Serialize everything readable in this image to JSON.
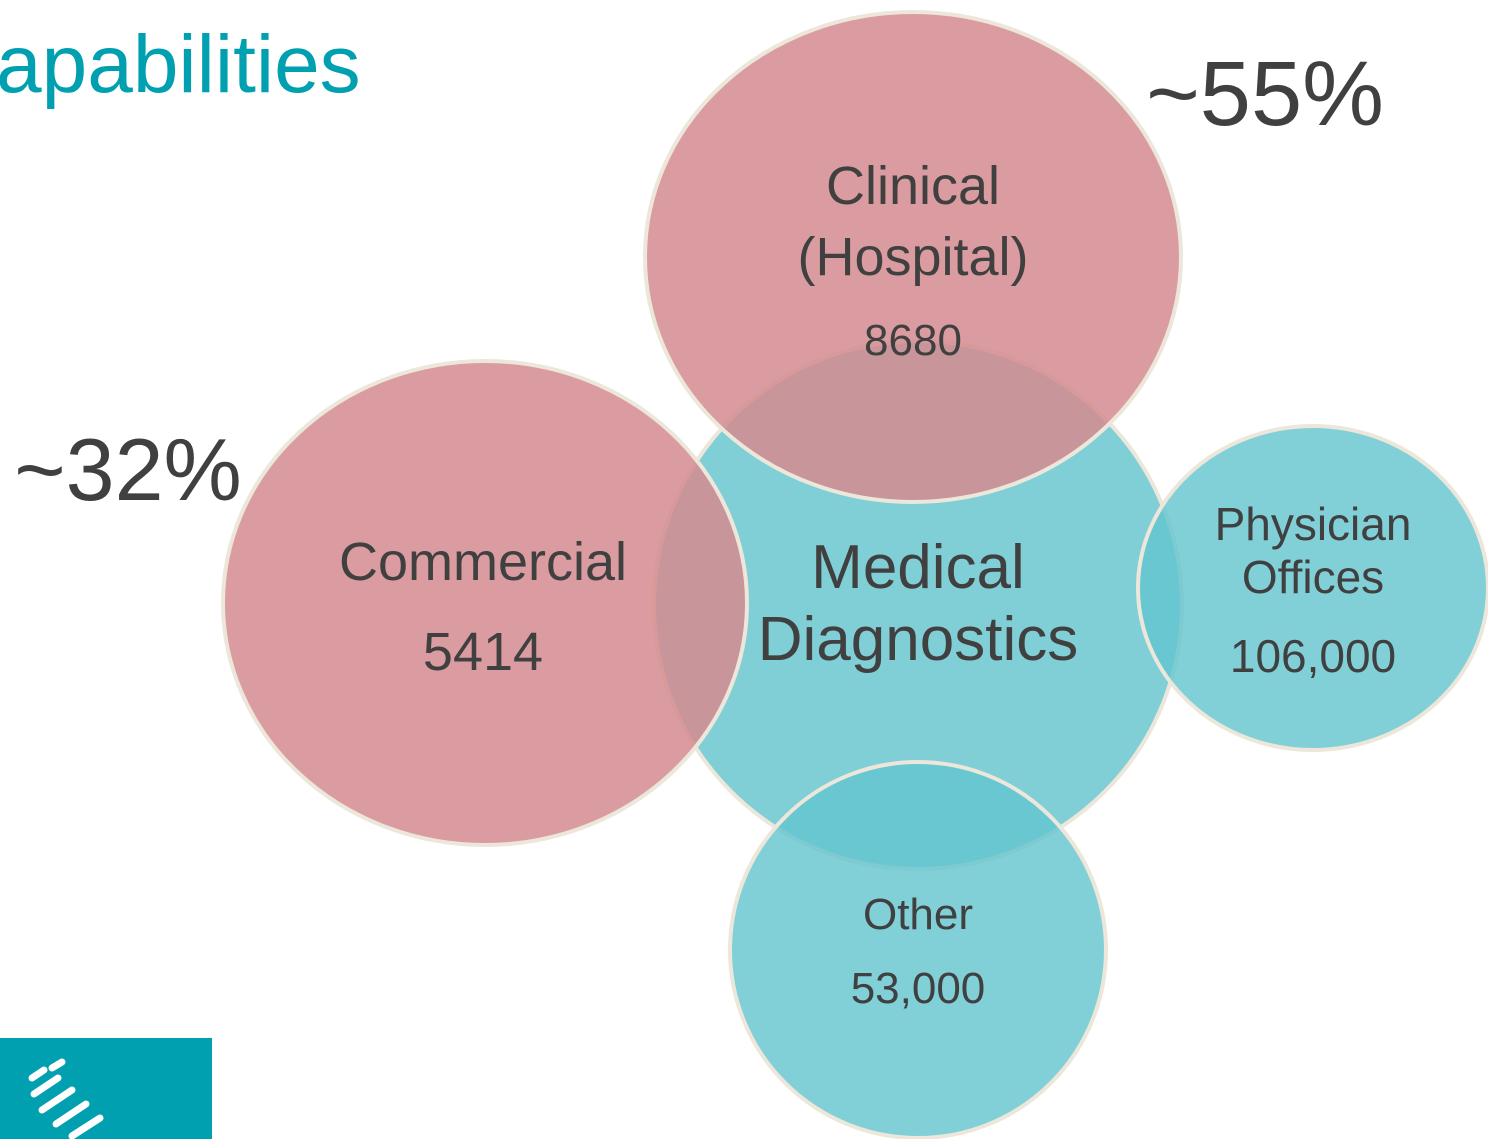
{
  "title": "apabilities",
  "nodes": [
    {
      "label": [
        "Medical",
        "Diagnostics"
      ]
    },
    {
      "label": [
        "Clinical",
        "(Hospital)"
      ],
      "value": "8680",
      "share": "~55%"
    },
    {
      "label": [
        "Commercial"
      ],
      "value": "5414",
      "share": "~32%"
    },
    {
      "label": [
        "Physician",
        "Offices"
      ],
      "value": "106,000"
    },
    {
      "label": [
        "Other"
      ],
      "value": "53,000"
    }
  ]
}
